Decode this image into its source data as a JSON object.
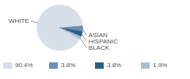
{
  "chart_data": {
    "type": "pie",
    "categories": [
      "WHITE",
      "ASIAN",
      "HISPANIC",
      "BLACK"
    ],
    "values": [
      90.4,
      3.8,
      3.8,
      1.9
    ],
    "value_labels": [
      "90.4%",
      "3.8%",
      "3.8%",
      "1.9%"
    ],
    "colors": [
      "#d6dee7",
      "#6c8eb0",
      "#2d5e84",
      "#a9bdd1"
    ],
    "legend": "bottom"
  }
}
